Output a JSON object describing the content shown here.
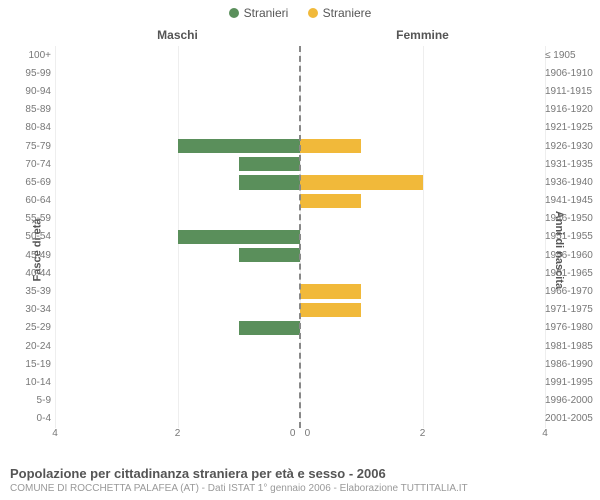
{
  "legend": {
    "male": "Stranieri",
    "female": "Straniere",
    "male_color": "#5a8f5b",
    "female_color": "#f1b93a"
  },
  "headers": {
    "male": "Maschi",
    "female": "Femmine"
  },
  "axis_titles": {
    "left": "Fasce di età",
    "right": "Anni di nascita"
  },
  "chart": {
    "type": "population-pyramid",
    "x_max": 4,
    "x_ticks": [
      4,
      2,
      0,
      0,
      2,
      4
    ],
    "grid_positions": [
      0,
      25,
      50,
      75,
      100
    ],
    "background": "#ffffff",
    "grid_color": "#eeeeee",
    "center_line_color": "#888888",
    "rows": [
      {
        "age": "100+",
        "birth": "≤ 1905",
        "m": 0,
        "f": 0
      },
      {
        "age": "95-99",
        "birth": "1906-1910",
        "m": 0,
        "f": 0
      },
      {
        "age": "90-94",
        "birth": "1911-1915",
        "m": 0,
        "f": 0
      },
      {
        "age": "85-89",
        "birth": "1916-1920",
        "m": 0,
        "f": 0
      },
      {
        "age": "80-84",
        "birth": "1921-1925",
        "m": 0,
        "f": 0
      },
      {
        "age": "75-79",
        "birth": "1926-1930",
        "m": 2,
        "f": 1
      },
      {
        "age": "70-74",
        "birth": "1931-1935",
        "m": 1,
        "f": 0
      },
      {
        "age": "65-69",
        "birth": "1936-1940",
        "m": 1,
        "f": 2
      },
      {
        "age": "60-64",
        "birth": "1941-1945",
        "m": 0,
        "f": 1
      },
      {
        "age": "55-59",
        "birth": "1946-1950",
        "m": 0,
        "f": 0
      },
      {
        "age": "50-54",
        "birth": "1951-1955",
        "m": 2,
        "f": 0
      },
      {
        "age": "45-49",
        "birth": "1956-1960",
        "m": 1,
        "f": 0
      },
      {
        "age": "40-44",
        "birth": "1961-1965",
        "m": 0,
        "f": 0
      },
      {
        "age": "35-39",
        "birth": "1966-1970",
        "m": 0,
        "f": 1
      },
      {
        "age": "30-34",
        "birth": "1971-1975",
        "m": 0,
        "f": 1
      },
      {
        "age": "25-29",
        "birth": "1976-1980",
        "m": 1,
        "f": 0
      },
      {
        "age": "20-24",
        "birth": "1981-1985",
        "m": 0,
        "f": 0
      },
      {
        "age": "15-19",
        "birth": "1986-1990",
        "m": 0,
        "f": 0
      },
      {
        "age": "10-14",
        "birth": "1991-1995",
        "m": 0,
        "f": 0
      },
      {
        "age": "5-9",
        "birth": "1996-2000",
        "m": 0,
        "f": 0
      },
      {
        "age": "0-4",
        "birth": "2001-2005",
        "m": 0,
        "f": 0
      }
    ]
  },
  "footer": {
    "title": "Popolazione per cittadinanza straniera per età e sesso - 2006",
    "subtitle": "COMUNE DI ROCCHETTA PALAFEA (AT) - Dati ISTAT 1° gennaio 2006 - Elaborazione TUTTITALIA.IT"
  }
}
